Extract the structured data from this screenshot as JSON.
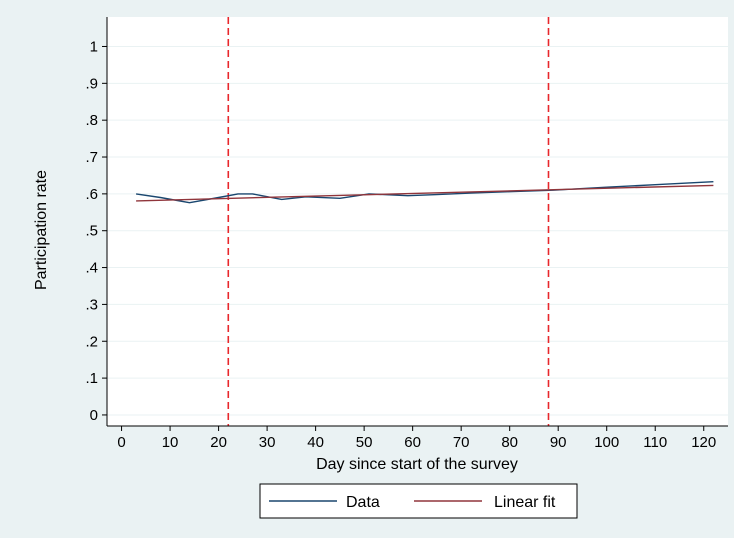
{
  "chart_data": {
    "type": "line",
    "title": "",
    "xlabel": "Day since start of the survey",
    "ylabel": "Participation rate",
    "xlim": [
      -3,
      125
    ],
    "ylim": [
      -0.03,
      1.08
    ],
    "xticks": [
      0,
      10,
      20,
      30,
      40,
      50,
      60,
      70,
      80,
      90,
      100,
      110,
      120
    ],
    "xtick_labels": [
      "0",
      "10",
      "20",
      "30",
      "40",
      "50",
      "60",
      "70",
      "80",
      "90",
      "100",
      "110",
      "120"
    ],
    "yticks": [
      0,
      0.1,
      0.2,
      0.3,
      0.4,
      0.5,
      0.6,
      0.7,
      0.8,
      0.9,
      1
    ],
    "ytick_labels": [
      "0",
      ".1",
      ".2",
      ".3",
      ".4",
      ".5",
      ".6",
      ".7",
      ".8",
      ".9",
      "1"
    ],
    "grid": true,
    "legend_position": "bottom",
    "series": [
      {
        "name": "Data",
        "color": "#1a476f",
        "x": [
          3,
          8,
          14,
          20,
          24,
          27,
          33,
          38,
          45,
          51,
          59,
          65,
          72,
          80,
          89,
          100,
          110,
          122
        ],
        "y": [
          0.6,
          0.59,
          0.576,
          0.59,
          0.6,
          0.6,
          0.585,
          0.592,
          0.588,
          0.6,
          0.595,
          0.598,
          0.602,
          0.606,
          0.61,
          0.618,
          0.625,
          0.633
        ]
      },
      {
        "name": "Linear fit",
        "color": "#90353b",
        "x": [
          3,
          122
        ],
        "y": [
          0.581,
          0.623
        ]
      }
    ],
    "reference_lines": [
      {
        "axis": "x",
        "value": 22,
        "color": "#e8272c",
        "style": "dashed"
      },
      {
        "axis": "x",
        "value": 88,
        "color": "#e8272c",
        "style": "dashed"
      }
    ]
  }
}
